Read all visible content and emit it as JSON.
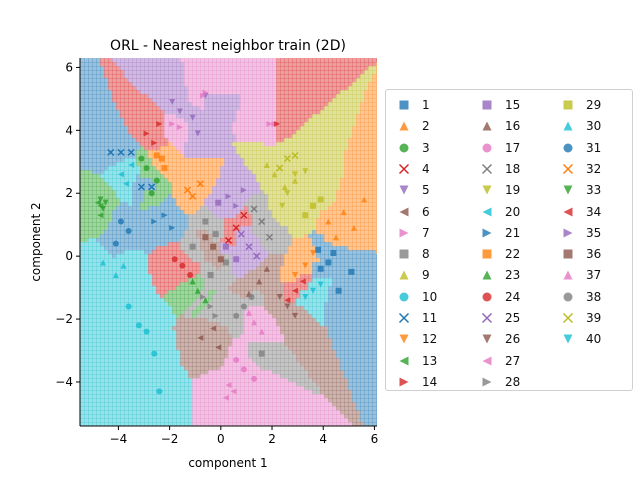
{
  "chart_data": {
    "type": "scatter",
    "title": "ORL - Nearest neighbor train (2D)",
    "xlabel": "component 1",
    "ylabel": "component 2",
    "xlim": [
      -5.5,
      6.1
    ],
    "ylim": [
      -5.4,
      6.3
    ],
    "xticks": [
      -4,
      -2,
      0,
      2,
      4,
      6
    ],
    "yticks": [
      -4,
      -2,
      0,
      2,
      4,
      6
    ],
    "background": "nearest-neighbor decision regions filled with class colors, boundaries drawn in black",
    "legend_position": "right",
    "legend_columns": 3,
    "series": [
      {
        "name": "1",
        "marker": "square",
        "color": "#1f77b4",
        "points": [
          [
            3.9,
            -0.4
          ],
          [
            4.2,
            -0.2
          ],
          [
            5.1,
            -0.5
          ],
          [
            4.6,
            -1.1
          ],
          [
            3.8,
            0.2
          ],
          [
            4.4,
            0.1
          ]
        ]
      },
      {
        "name": "2",
        "marker": "triangle-up",
        "color": "#ff7f0e",
        "points": [
          [
            4.8,
            1.4
          ],
          [
            5.2,
            0.9
          ],
          [
            4.5,
            0.6
          ],
          [
            5.6,
            1.8
          ],
          [
            4.2,
            1.1
          ]
        ]
      },
      {
        "name": "3",
        "marker": "circle",
        "color": "#2ca02c",
        "points": [
          [
            -2.9,
            2.8
          ],
          [
            -3.1,
            3.1
          ],
          [
            -2.5,
            2.4
          ],
          [
            -2.7,
            2.0
          ]
        ]
      },
      {
        "name": "4",
        "marker": "x",
        "color": "#d62728",
        "points": [
          [
            0.6,
            0.9
          ],
          [
            0.3,
            0.5
          ],
          [
            0.9,
            1.3
          ]
        ]
      },
      {
        "name": "5",
        "marker": "triangle-down",
        "color": "#9467bd",
        "points": [
          [
            -1.6,
            4.6
          ],
          [
            -1.1,
            4.4
          ],
          [
            -0.6,
            5.1
          ],
          [
            -0.9,
            3.9
          ],
          [
            -1.9,
            4.9
          ]
        ]
      },
      {
        "name": "6",
        "marker": "triangle-left",
        "color": "#8c564b",
        "points": [
          [
            -0.8,
            -2.6
          ],
          [
            -0.3,
            -2.3
          ],
          [
            -0.1,
            -2.9
          ]
        ]
      },
      {
        "name": "7",
        "marker": "triangle-right",
        "color": "#e377c2",
        "points": [
          [
            -1.9,
            4.2
          ],
          [
            -1.6,
            4.1
          ],
          [
            -0.7,
            5.1
          ],
          [
            -0.6,
            5.2
          ],
          [
            1.9,
            4.2
          ],
          [
            2.1,
            4.2
          ]
        ]
      },
      {
        "name": "8",
        "marker": "square",
        "color": "#7f7f7f",
        "points": [
          [
            -0.6,
            1.1
          ],
          [
            -0.2,
            0.7
          ],
          [
            -1.1,
            0.3
          ],
          [
            0.2,
            -0.2
          ],
          [
            -0.4,
            -0.6
          ],
          [
            1.6,
            -3.1
          ]
        ]
      },
      {
        "name": "9",
        "marker": "triangle-up",
        "color": "#bcbd22",
        "points": [
          [
            2.1,
            2.6
          ],
          [
            2.5,
            2.2
          ],
          [
            1.8,
            2.9
          ],
          [
            2.9,
            2.4
          ]
        ]
      },
      {
        "name": "10",
        "marker": "circle",
        "color": "#17becf",
        "points": [
          [
            -3.6,
            -1.6
          ],
          [
            -2.9,
            -2.4
          ],
          [
            -2.4,
            -4.3
          ],
          [
            -2.6,
            -3.1
          ],
          [
            -3.2,
            -2.2
          ]
        ]
      },
      {
        "name": "11",
        "marker": "x",
        "color": "#1f77b4",
        "points": [
          [
            -4.3,
            3.3
          ],
          [
            -3.9,
            3.3
          ],
          [
            -3.5,
            3.3
          ],
          [
            -3.1,
            2.2
          ],
          [
            -2.7,
            2.2
          ]
        ]
      },
      {
        "name": "12",
        "marker": "triangle-down",
        "color": "#ff7f0e",
        "points": [
          [
            3.3,
            -0.3
          ],
          [
            2.9,
            -0.6
          ],
          [
            3.6,
            0.1
          ]
        ]
      },
      {
        "name": "13",
        "marker": "triangle-left",
        "color": "#2ca02c",
        "points": [
          [
            -4.7,
            1.6
          ],
          [
            -4.8,
            1.7
          ],
          [
            -4.7,
            1.3
          ]
        ]
      },
      {
        "name": "14",
        "marker": "triangle-right",
        "color": "#d62728",
        "points": [
          [
            -2.9,
            3.9
          ],
          [
            -2.4,
            4.2
          ],
          [
            2.2,
            4.2
          ],
          [
            -2.6,
            3.6
          ]
        ]
      },
      {
        "name": "15",
        "marker": "square",
        "color": "#9467bd",
        "points": [
          [
            0.2,
            0.3
          ],
          [
            0.6,
            -0.1
          ],
          [
            -0.1,
            1.7
          ]
        ]
      },
      {
        "name": "16",
        "marker": "triangle-up",
        "color": "#8c564b",
        "points": [
          [
            1.5,
            -0.8
          ],
          [
            1.1,
            -1.2
          ],
          [
            1.8,
            -0.4
          ]
        ]
      },
      {
        "name": "17",
        "marker": "circle",
        "color": "#e377c2",
        "points": [
          [
            0.9,
            -3.6
          ],
          [
            1.3,
            -3.9
          ],
          [
            0.6,
            -3.3
          ]
        ]
      },
      {
        "name": "18",
        "marker": "x",
        "color": "#7f7f7f",
        "points": [
          [
            1.6,
            1.1
          ],
          [
            1.9,
            0.6
          ],
          [
            1.3,
            1.5
          ]
        ]
      },
      {
        "name": "19",
        "marker": "triangle-down",
        "color": "#bcbd22",
        "points": [
          [
            2.6,
            2.0
          ],
          [
            2.9,
            2.6
          ],
          [
            3.3,
            2.7
          ],
          [
            2.4,
            1.6
          ]
        ]
      },
      {
        "name": "20",
        "marker": "triangle-left",
        "color": "#17becf",
        "points": [
          [
            -3.9,
            2.6
          ],
          [
            -3.5,
            2.9
          ],
          [
            -3.7,
            2.3
          ]
        ]
      },
      {
        "name": "21",
        "marker": "triangle-right",
        "color": "#1f77b4",
        "points": [
          [
            -2.2,
            1.3
          ],
          [
            -1.9,
            0.9
          ],
          [
            -2.6,
            1.1
          ]
        ]
      },
      {
        "name": "22",
        "marker": "square",
        "color": "#ff7f0e",
        "points": [
          [
            -2.3,
            3.1
          ],
          [
            -2.5,
            3.2
          ],
          [
            -2.2,
            2.8
          ]
        ]
      },
      {
        "name": "23",
        "marker": "triangle-up",
        "color": "#2ca02c",
        "points": [
          [
            -0.9,
            -1.1
          ],
          [
            -0.6,
            -1.4
          ],
          [
            -1.1,
            -0.8
          ]
        ]
      },
      {
        "name": "24",
        "marker": "circle",
        "color": "#d62728",
        "points": [
          [
            -1.5,
            -0.3
          ],
          [
            -1.2,
            -0.6
          ],
          [
            -1.8,
            -0.1
          ]
        ]
      },
      {
        "name": "25",
        "marker": "x",
        "color": "#9467bd",
        "points": [
          [
            1.1,
            0.3
          ],
          [
            0.8,
            0.7
          ],
          [
            1.4,
            0.0
          ]
        ]
      },
      {
        "name": "26",
        "marker": "triangle-down",
        "color": "#8c564b",
        "points": [
          [
            2.6,
            -1.6
          ],
          [
            2.9,
            -1.9
          ],
          [
            2.3,
            -1.3
          ]
        ]
      },
      {
        "name": "27",
        "marker": "triangle-left",
        "color": "#e377c2",
        "points": [
          [
            0.3,
            -4.1
          ],
          [
            0.2,
            -4.5
          ],
          [
            0.5,
            -4.3
          ]
        ]
      },
      {
        "name": "28",
        "marker": "triangle-right",
        "color": "#7f7f7f",
        "points": [
          [
            -0.4,
            -1.6
          ],
          [
            -0.2,
            -1.9
          ],
          [
            -0.7,
            -1.3
          ]
        ]
      },
      {
        "name": "29",
        "marker": "square",
        "color": "#bcbd22",
        "points": [
          [
            3.6,
            1.6
          ],
          [
            3.9,
            1.8
          ],
          [
            3.3,
            1.3
          ]
        ]
      },
      {
        "name": "30",
        "marker": "triangle-up",
        "color": "#17becf",
        "points": [
          [
            -4.6,
            -0.2
          ],
          [
            -4.1,
            -0.6
          ],
          [
            -3.8,
            -0.3
          ]
        ]
      },
      {
        "name": "31",
        "marker": "circle",
        "color": "#1f77b4",
        "points": [
          [
            -4.1,
            0.4
          ],
          [
            -3.6,
            0.8
          ],
          [
            -3.9,
            1.1
          ]
        ]
      },
      {
        "name": "32",
        "marker": "x",
        "color": "#ff7f0e",
        "points": [
          [
            -1.1,
            1.9
          ],
          [
            -0.8,
            2.3
          ],
          [
            -1.3,
            2.1
          ]
        ]
      },
      {
        "name": "33",
        "marker": "triangle-down",
        "color": "#2ca02c",
        "points": [
          [
            -4.7,
            1.8
          ],
          [
            -4.6,
            1.5
          ],
          [
            -4.5,
            1.7
          ]
        ]
      },
      {
        "name": "34",
        "marker": "triangle-left",
        "color": "#d62728",
        "points": [
          [
            2.9,
            -1.1
          ],
          [
            3.2,
            -0.8
          ],
          [
            2.6,
            -1.4
          ]
        ]
      },
      {
        "name": "35",
        "marker": "triangle-right",
        "color": "#9467bd",
        "points": [
          [
            0.6,
            1.6
          ],
          [
            0.9,
            2.1
          ],
          [
            0.3,
            1.9
          ]
        ]
      },
      {
        "name": "36",
        "marker": "square",
        "color": "#8c564b",
        "points": [
          [
            -0.3,
            0.3
          ],
          [
            0.0,
            -0.1
          ],
          [
            -0.6,
            0.6
          ]
        ]
      },
      {
        "name": "37",
        "marker": "triangle-up",
        "color": "#e377c2",
        "points": [
          [
            1.3,
            -2.1
          ],
          [
            1.6,
            -2.4
          ],
          [
            1.1,
            -1.8
          ]
        ]
      },
      {
        "name": "38",
        "marker": "circle",
        "color": "#7f7f7f",
        "points": [
          [
            0.9,
            -1.6
          ],
          [
            1.2,
            -1.3
          ],
          [
            0.6,
            -1.9
          ]
        ]
      },
      {
        "name": "39",
        "marker": "x",
        "color": "#bcbd22",
        "points": [
          [
            2.6,
            3.1
          ],
          [
            2.3,
            2.8
          ],
          [
            2.9,
            3.2
          ]
        ]
      },
      {
        "name": "40",
        "marker": "triangle-down",
        "color": "#17becf",
        "points": [
          [
            3.6,
            -1.1
          ],
          [
            3.3,
            -1.3
          ],
          [
            3.9,
            -0.9
          ]
        ]
      }
    ]
  }
}
